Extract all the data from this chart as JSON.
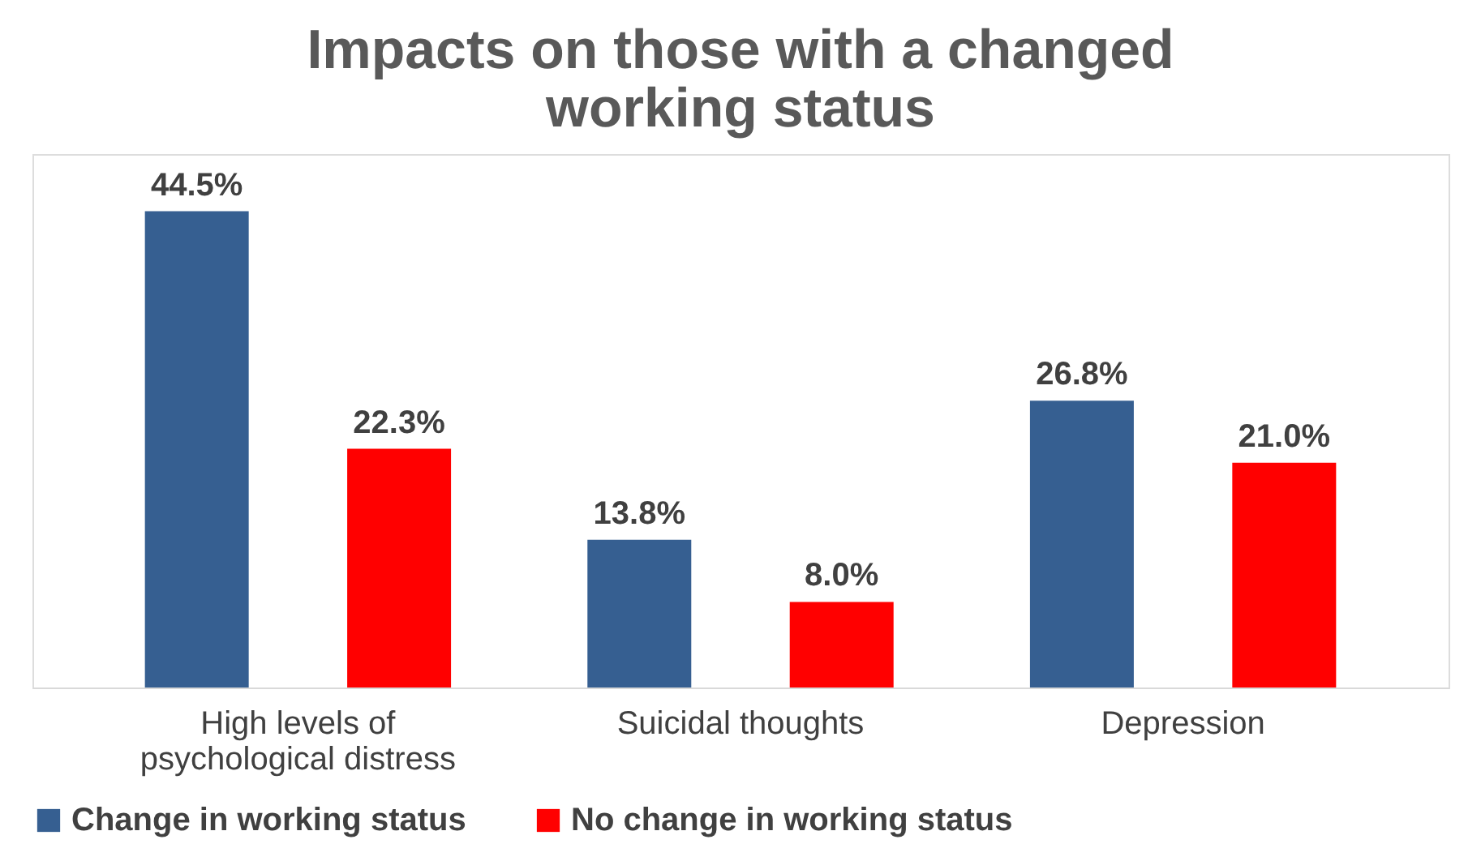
{
  "chart_data": {
    "type": "bar",
    "title": "Impacts on those with a changed working status",
    "categories": [
      "High levels of psychological distress",
      "Suicidal thoughts",
      "Depression"
    ],
    "series": [
      {
        "name": "Change in working status",
        "color": "#365f91",
        "values": [
          44.5,
          13.8,
          26.8
        ],
        "value_labels": [
          "44.5%",
          "13.8%",
          "26.8%"
        ]
      },
      {
        "name": "No change in working status",
        "color": "#ff0000",
        "values": [
          22.3,
          8.0,
          21.0
        ],
        "value_labels": [
          "22.3%",
          "8.0%",
          "21.0%"
        ]
      }
    ],
    "legend": "bottom",
    "grid": false
  }
}
